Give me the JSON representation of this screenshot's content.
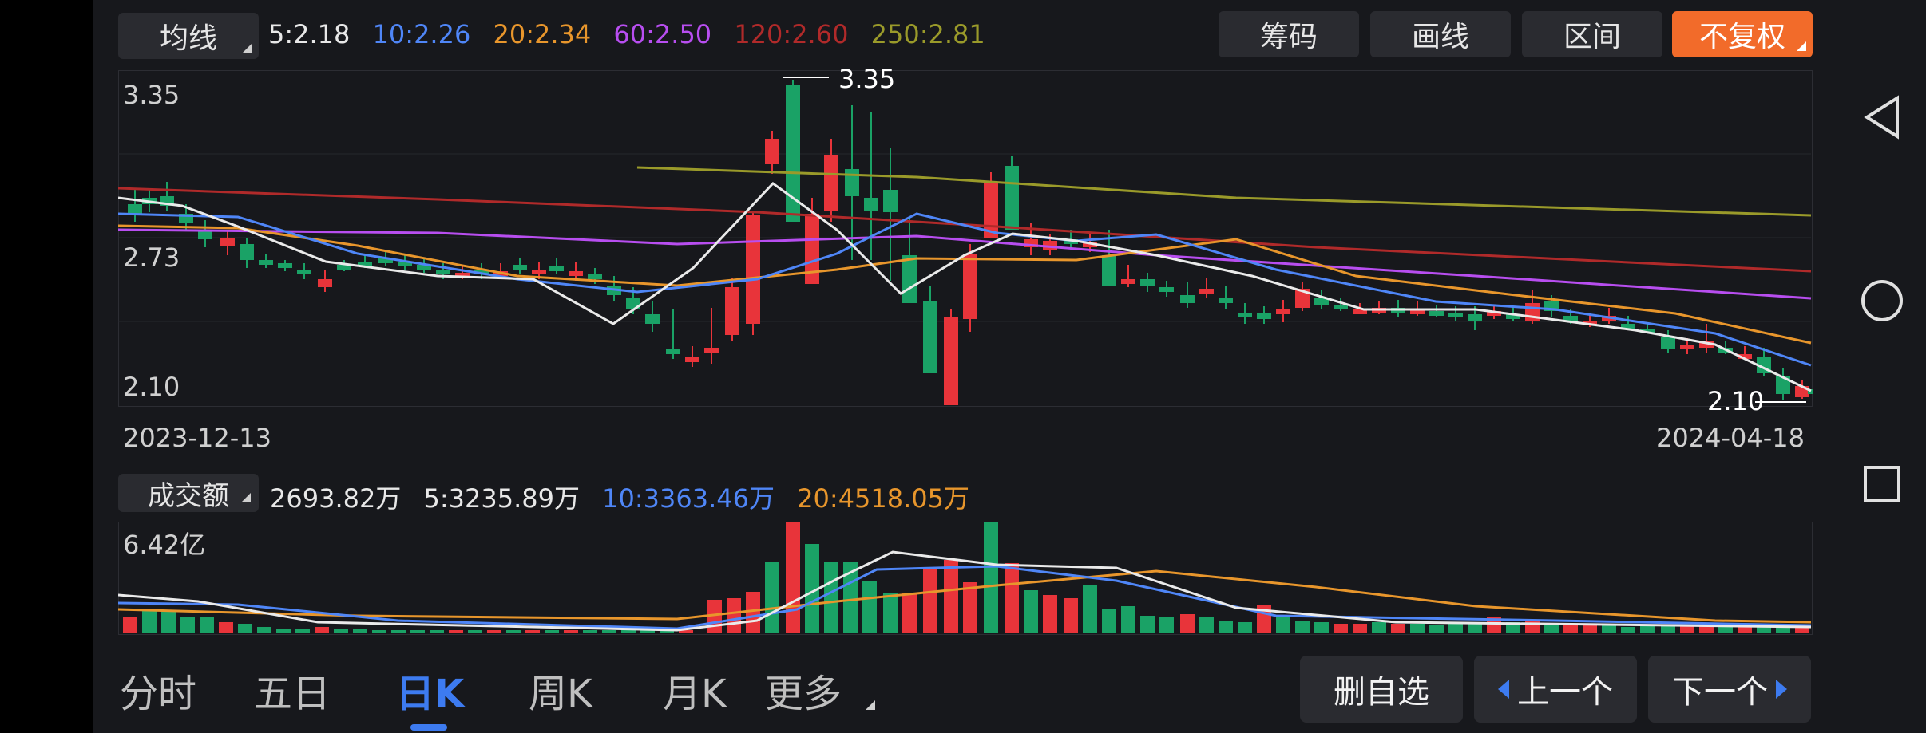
{
  "toolbar": {
    "ma_select": "均线",
    "buttons": [
      "筹码",
      "画线",
      "区间",
      "不复权"
    ]
  },
  "ma_values": [
    {
      "label": "5:2.18",
      "color": "#e8e8e8"
    },
    {
      "label": "10:2.26",
      "color": "#4f86f7"
    },
    {
      "label": "20:2.34",
      "color": "#e8962c"
    },
    {
      "label": "60:2.50",
      "color": "#b84ef0"
    },
    {
      "label": "120:2.60",
      "color": "#b02a2a"
    },
    {
      "label": "250:2.81",
      "color": "#9a9a2a"
    }
  ],
  "price_axis": [
    "3.35",
    "2.73",
    "2.10"
  ],
  "annotations": {
    "high": "3.35",
    "low": "2.10"
  },
  "dates": {
    "start": "2023-12-13",
    "end": "2024-04-18"
  },
  "volume": {
    "select": "成交额",
    "values": [
      {
        "label": "2693.82万",
        "color": "#e8e8e8"
      },
      {
        "label": "5:3235.89万",
        "color": "#e8e8e8"
      },
      {
        "label": "10:3363.46万",
        "color": "#4f86f7"
      },
      {
        "label": "20:4518.05万",
        "color": "#e8962c"
      }
    ],
    "axis_max": "6.42亿"
  },
  "tabs": [
    "分时",
    "五日",
    "日K",
    "周K",
    "月K",
    "更多"
  ],
  "active_tab": "日K",
  "nav": {
    "delete": "删自选",
    "prev": "上一个",
    "next": "下一个"
  },
  "colors": {
    "up": "#e8343a",
    "down": "#1aa266",
    "accent": "#3d7bf0",
    "orange": "#f26b2a"
  }
}
